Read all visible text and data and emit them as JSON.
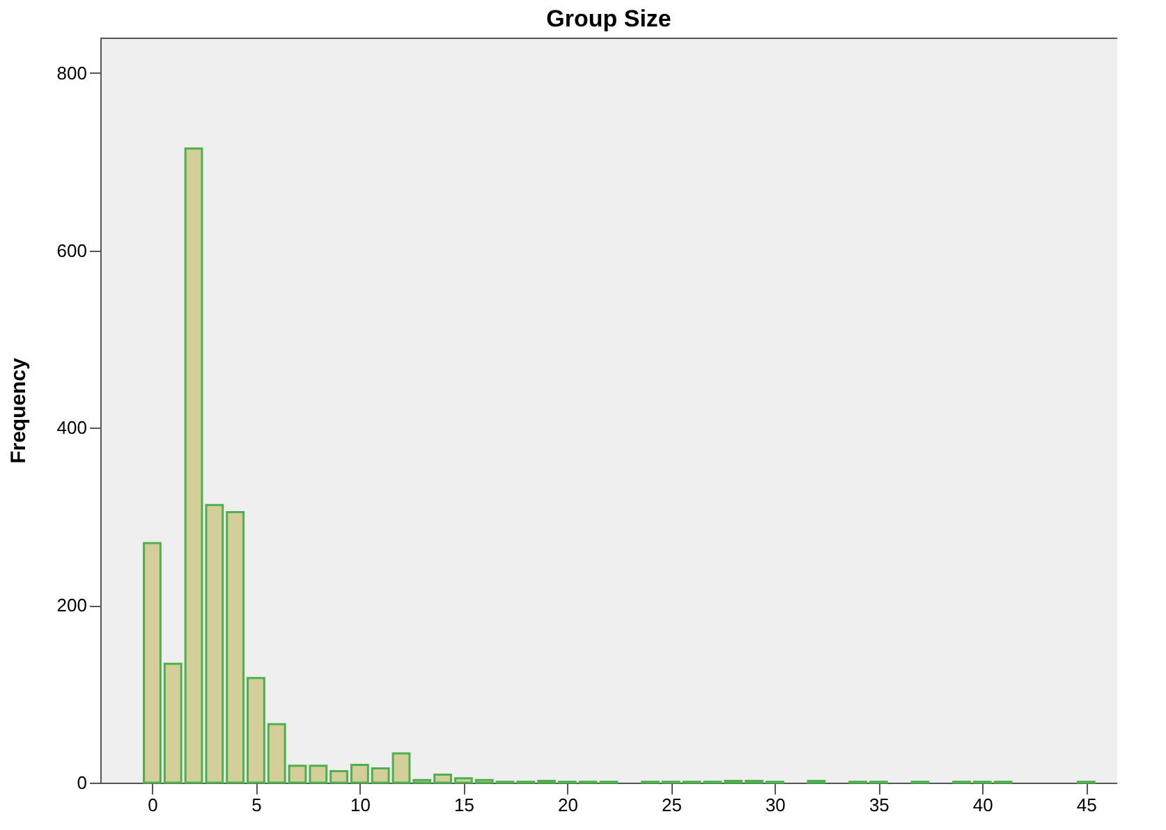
{
  "chart_data": {
    "type": "histogram",
    "title": "Group Size",
    "ylabel": "Frequency",
    "bins": [
      -0.5,
      0.5,
      1.5,
      2.5,
      3.5,
      4.5,
      5.5,
      6.5,
      7.5,
      8.5,
      9.5,
      10.5,
      11.5,
      12.5,
      13.5,
      14.5,
      15.5,
      16.5,
      17.5,
      18.5,
      19.5,
      20.5,
      21.5,
      22.5,
      23.5,
      24.5,
      25.5,
      26.5,
      27.5,
      28.5,
      29.5,
      30.5,
      31.5,
      32.5,
      33.5,
      34.5,
      35.5,
      36.5,
      37.5,
      38.5,
      39.5,
      40.5,
      41.5,
      42.5,
      43.5,
      44.5,
      45.5
    ],
    "values": [
      270,
      134,
      715,
      313,
      305,
      118,
      66,
      19,
      19,
      13,
      20,
      16,
      33,
      3,
      9,
      5,
      3,
      1,
      1,
      2,
      1,
      1,
      1,
      0,
      1,
      1,
      1,
      1,
      2,
      2,
      1,
      0,
      2,
      0,
      1,
      1,
      0,
      1,
      0,
      1,
      1,
      1,
      0,
      0,
      0,
      1
    ],
    "color": "#d4cf9a",
    "xlim": [
      -2.5,
      46.5
    ],
    "ylim": [
      0,
      840
    ],
    "xticks": [
      0,
      5,
      10,
      15,
      20,
      25,
      30,
      35,
      40,
      45
    ],
    "yticks": [
      0,
      200,
      400,
      600,
      800
    ],
    "grid": false
  }
}
